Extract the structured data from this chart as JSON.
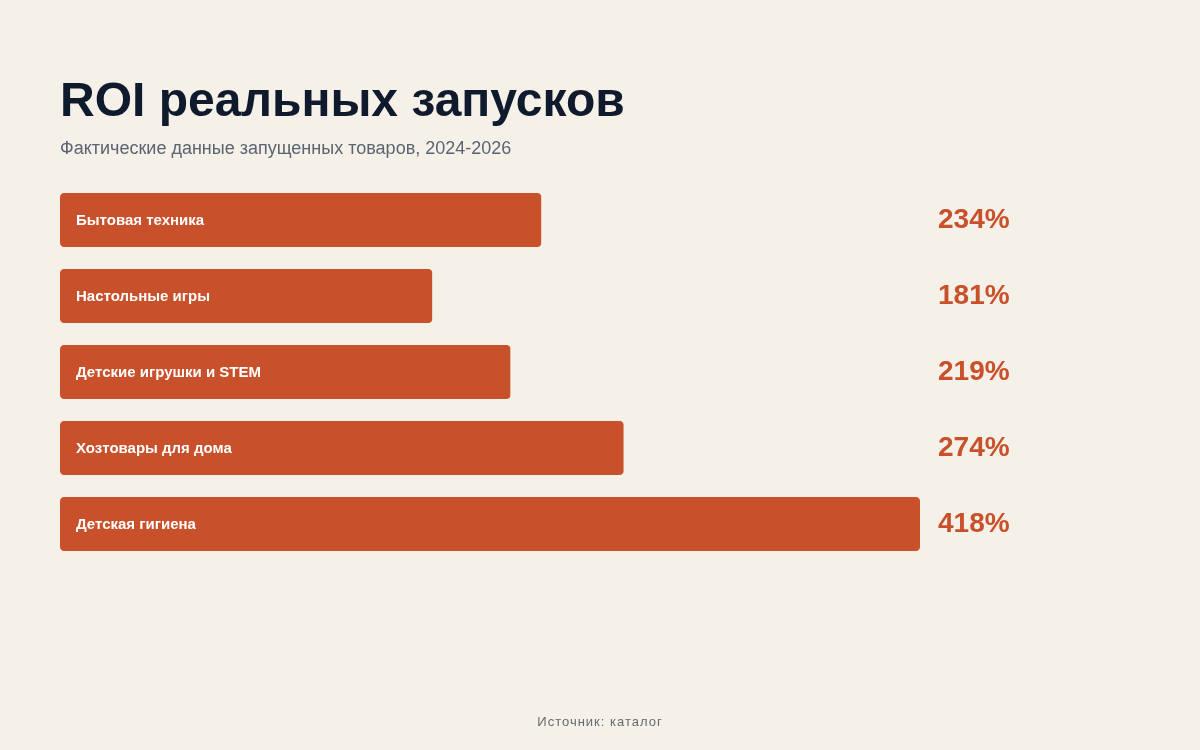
{
  "chart_data": {
    "type": "bar",
    "orientation": "horizontal",
    "title": "ROI реальных запусков",
    "subtitle": "Фактические данные запущенных товаров, 2024-2026",
    "categories": [
      "Бытовая техника",
      "Настольные игры",
      "Детские игрушки и STEM",
      "Хозтовары для дома",
      "Детская гигиена"
    ],
    "values": [
      234,
      181,
      219,
      274,
      418
    ],
    "value_labels": [
      "234%",
      "181%",
      "219%",
      "274%",
      "418%"
    ],
    "color": "#c8502a",
    "xlim": [
      0,
      418
    ],
    "tick_labels": false,
    "annotations": [
      "Источник: каталог"
    ]
  }
}
